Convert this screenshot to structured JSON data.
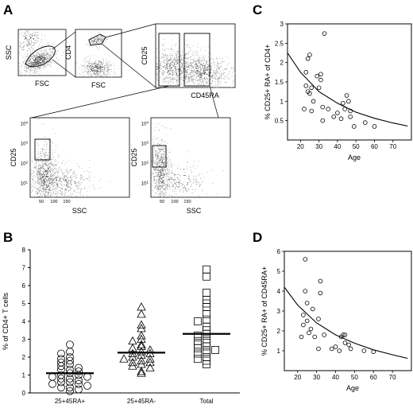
{
  "panels": {
    "A": "A",
    "B": "B",
    "C": "C",
    "D": "D"
  },
  "panel_a": {
    "plots": [
      {
        "xlabel": "FSC",
        "ylabel": "SSC"
      },
      {
        "xlabel": "FSC",
        "ylabel": "CD4"
      },
      {
        "xlabel": "CD45RA",
        "ylabel": "CD25"
      },
      {
        "xlabel": "SSC",
        "ylabel": "CD25"
      },
      {
        "xlabel": "SSC",
        "ylabel": "CD25"
      }
    ],
    "ytick_exp": [
      "4",
      "3",
      "2",
      "1"
    ],
    "xtick_low": [
      "50",
      "100",
      "150"
    ],
    "ytick_base": "10"
  },
  "chart_data": [
    {
      "type": "scatter",
      "panel": "B",
      "title": "",
      "xlabel": "",
      "ylabel": "% of CD4+ T cells",
      "categories": [
        "25+45RA+",
        "25+45RA-",
        "Total"
      ],
      "ylim": [
        0,
        8
      ],
      "yticks": [
        0,
        1,
        2,
        3,
        4,
        5,
        6,
        7,
        8
      ],
      "series": [
        {
          "category": "25+45RA+",
          "marker": "circle",
          "mean": 1.1,
          "values": [
            2.7,
            2.3,
            2.2,
            2.0,
            1.9,
            1.8,
            1.7,
            1.6,
            1.5,
            1.4,
            1.3,
            1.3,
            1.2,
            1.1,
            1.0,
            1.0,
            0.9,
            0.9,
            0.8,
            0.8,
            0.7,
            0.6,
            0.6,
            0.5,
            0.5,
            0.4,
            0.3,
            0.3,
            0.2,
            0.1
          ]
        },
        {
          "category": "25+45RA-",
          "marker": "triangle",
          "mean": 2.25,
          "values": [
            4.8,
            4.4,
            3.8,
            3.6,
            3.2,
            3.0,
            2.9,
            2.7,
            2.6,
            2.5,
            2.4,
            2.3,
            2.2,
            2.2,
            2.1,
            2.0,
            1.9,
            1.9,
            1.8,
            1.7,
            1.7,
            1.6,
            1.5,
            1.4,
            1.2,
            1.1
          ]
        },
        {
          "category": "Total",
          "marker": "square",
          "mean": 3.3,
          "values": [
            6.9,
            6.5,
            5.6,
            5.2,
            5.0,
            4.8,
            4.4,
            4.1,
            4.0,
            3.7,
            3.5,
            3.3,
            3.2,
            3.0,
            2.9,
            2.8,
            2.7,
            2.6,
            2.5,
            2.4,
            2.3,
            2.2,
            2.0,
            1.9,
            1.8,
            1.6
          ]
        }
      ]
    },
    {
      "type": "scatter",
      "panel": "C",
      "title": "",
      "xlabel": "Age",
      "ylabel": "% CD25+ RA+ of CD4+",
      "xlim": [
        13,
        80
      ],
      "ylim": [
        0,
        3
      ],
      "xticks": [
        20,
        30,
        40,
        50,
        60,
        70
      ],
      "yticks": [
        0.5,
        1,
        1.5,
        2,
        2.5,
        3
      ],
      "points": [
        [
          22,
          0.8
        ],
        [
          23,
          1.75
        ],
        [
          23,
          1.4
        ],
        [
          24,
          2.1
        ],
        [
          25,
          2.2
        ],
        [
          24,
          1.25
        ],
        [
          26,
          1.35
        ],
        [
          25,
          1.2
        ],
        [
          27,
          1.0
        ],
        [
          26,
          0.75
        ],
        [
          29,
          1.65
        ],
        [
          30,
          1.35
        ],
        [
          31,
          1.55
        ],
        [
          31,
          1.7
        ],
        [
          32,
          0.85
        ],
        [
          32,
          0.5
        ],
        [
          33,
          2.75
        ],
        [
          35,
          0.8
        ],
        [
          38,
          0.6
        ],
        [
          40,
          0.7
        ],
        [
          42,
          0.55
        ],
        [
          43,
          0.95
        ],
        [
          44,
          0.8
        ],
        [
          45,
          1.15
        ],
        [
          46,
          1.0
        ],
        [
          47,
          0.75
        ],
        [
          47,
          0.6
        ],
        [
          49,
          0.35
        ],
        [
          55,
          0.45
        ],
        [
          60,
          0.35
        ]
      ],
      "fit": {
        "type": "curve",
        "x": [
          13,
          20,
          30,
          40,
          50,
          60,
          70,
          78
        ],
        "y": [
          2.25,
          1.75,
          1.25,
          0.95,
          0.72,
          0.56,
          0.44,
          0.36
        ]
      }
    },
    {
      "type": "scatter",
      "panel": "D",
      "title": "",
      "xlabel": "Age",
      "ylabel": "% CD25+ RA+ of CD45RA+",
      "xlim": [
        13,
        80
      ],
      "ylim": [
        0,
        6
      ],
      "xticks": [
        20,
        30,
        40,
        50,
        60,
        70
      ],
      "yticks": [
        1,
        2,
        3,
        4,
        5,
        6
      ],
      "points": [
        [
          22,
          1.7
        ],
        [
          23,
          2.8
        ],
        [
          23,
          2.3
        ],
        [
          24,
          4.0
        ],
        [
          24,
          5.6
        ],
        [
          25,
          3.4
        ],
        [
          25,
          2.5
        ],
        [
          26,
          1.9
        ],
        [
          27,
          2.1
        ],
        [
          28,
          3.1
        ],
        [
          29,
          1.7
        ],
        [
          31,
          2.6
        ],
        [
          31,
          1.1
        ],
        [
          32,
          4.5
        ],
        [
          32,
          3.9
        ],
        [
          34,
          1.8
        ],
        [
          38,
          1.1
        ],
        [
          40,
          1.2
        ],
        [
          42,
          1.0
        ],
        [
          43,
          1.7
        ],
        [
          44,
          1.8
        ],
        [
          45,
          1.8
        ],
        [
          45,
          1.4
        ],
        [
          47,
          1.3
        ],
        [
          48,
          1.1
        ],
        [
          55,
          1.0
        ],
        [
          60,
          0.95
        ]
      ],
      "fit": {
        "type": "curve",
        "x": [
          13,
          20,
          30,
          40,
          50,
          60,
          70,
          78
        ],
        "y": [
          4.2,
          3.3,
          2.4,
          1.8,
          1.38,
          1.05,
          0.8,
          0.62
        ]
      }
    }
  ]
}
